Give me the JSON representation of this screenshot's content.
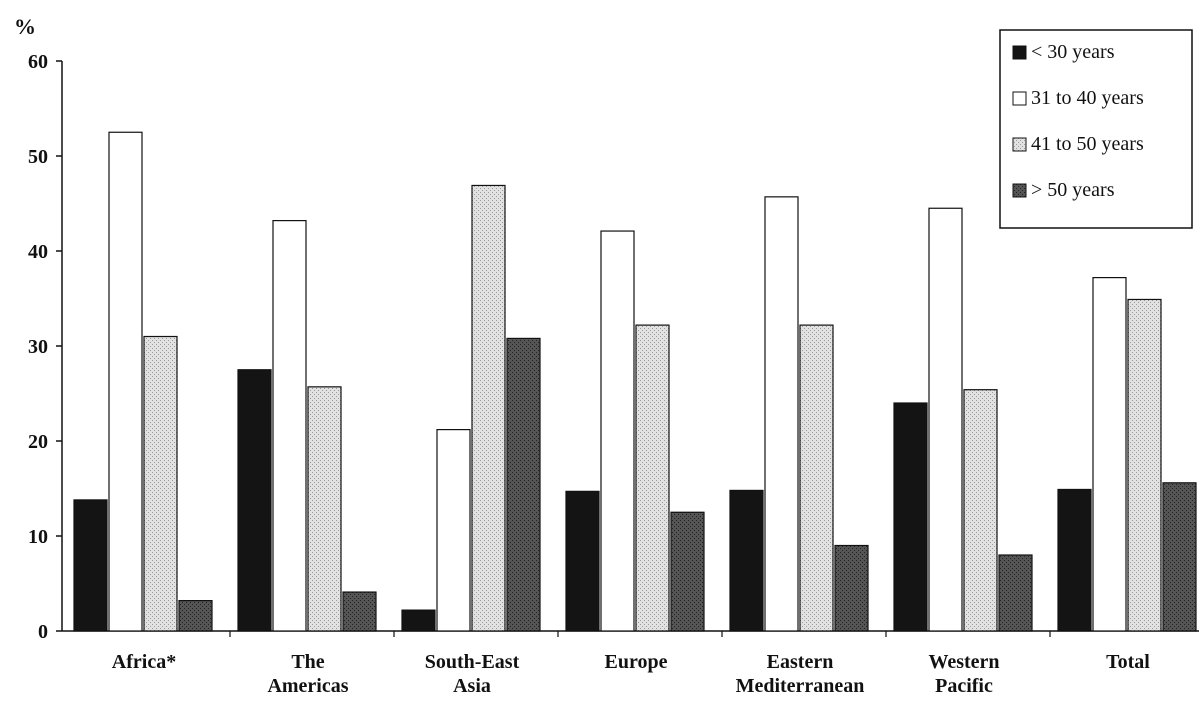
{
  "chart_data": {
    "type": "bar",
    "ylabel": "%",
    "ylim": [
      0,
      60
    ],
    "yticks": [
      0,
      10,
      20,
      30,
      40,
      50,
      60
    ],
    "grid": false,
    "legend_position": "top-right",
    "categories": [
      [
        "Africa*"
      ],
      [
        "The",
        "Americas"
      ],
      [
        "South-East",
        "Asia"
      ],
      [
        "Europe"
      ],
      [
        "Eastern",
        "Mediterranean"
      ],
      [
        "Western",
        "Pacific"
      ],
      [
        "Total"
      ]
    ],
    "series": [
      {
        "name": "< 30 years",
        "color": "#141414",
        "values": [
          13.8,
          27.5,
          2.2,
          14.7,
          14.8,
          24.0,
          14.9
        ]
      },
      {
        "name": "31 to 40 years",
        "color": "#ffffff",
        "values": [
          52.5,
          43.2,
          21.2,
          42.1,
          45.7,
          44.5,
          37.2
        ]
      },
      {
        "name": "41 to 50 years",
        "color": "#d7d7d7",
        "values": [
          31.0,
          25.7,
          46.9,
          32.2,
          32.2,
          25.4,
          34.9
        ]
      },
      {
        "name": "> 50 years",
        "color": "#4f4f4f",
        "values": [
          3.2,
          4.1,
          30.8,
          12.5,
          9.0,
          8.0,
          15.6
        ]
      }
    ]
  }
}
